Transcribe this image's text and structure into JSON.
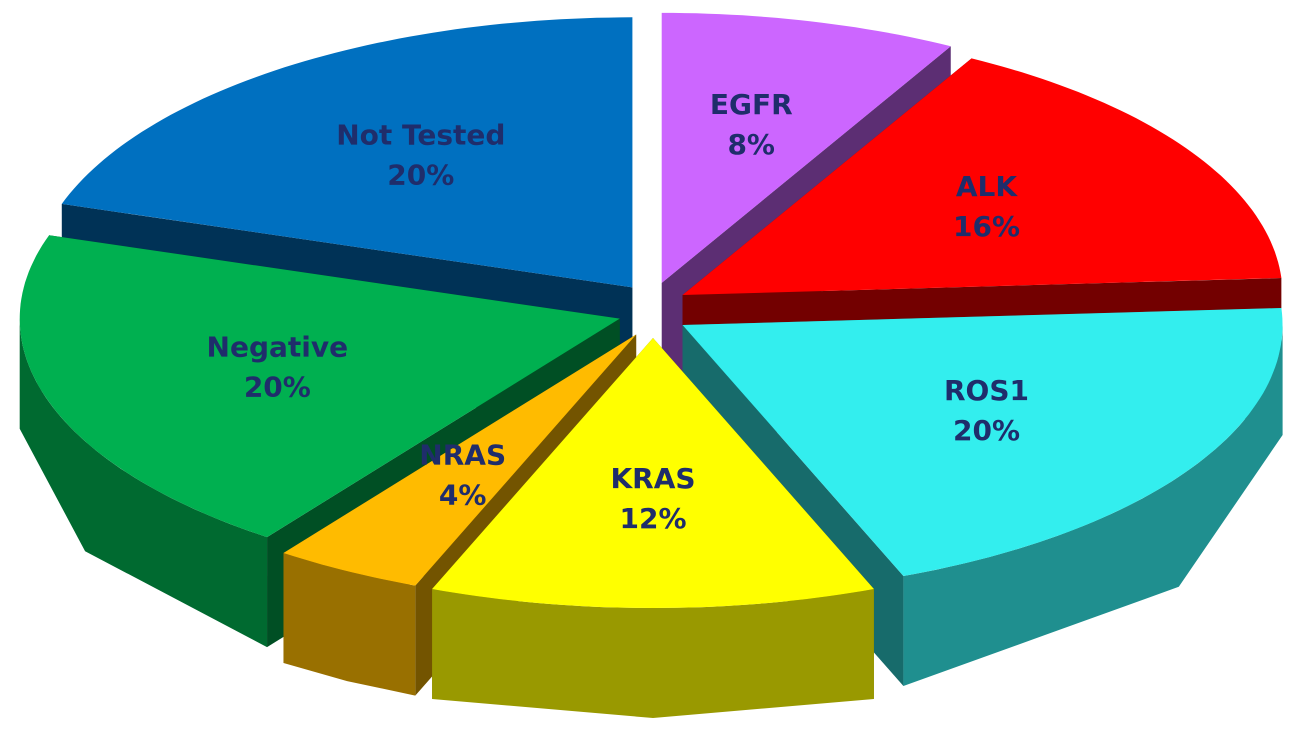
{
  "chart_data": {
    "type": "pie",
    "categories": [
      "EGFR",
      "ALK",
      "ROS1",
      "KRAS",
      "NRAS",
      "Negative",
      "Not Tested"
    ],
    "values": [
      8,
      16,
      20,
      12,
      4,
      20,
      20
    ],
    "value_labels": [
      "8%",
      "16%",
      "20%",
      "12%",
      "4%",
      "20%",
      "20%"
    ],
    "colors": [
      "#cc66ff",
      "#ff0000",
      "#33eeee",
      "#ffff00",
      "#ffbb00",
      "#00b050",
      "#0070c0"
    ]
  }
}
